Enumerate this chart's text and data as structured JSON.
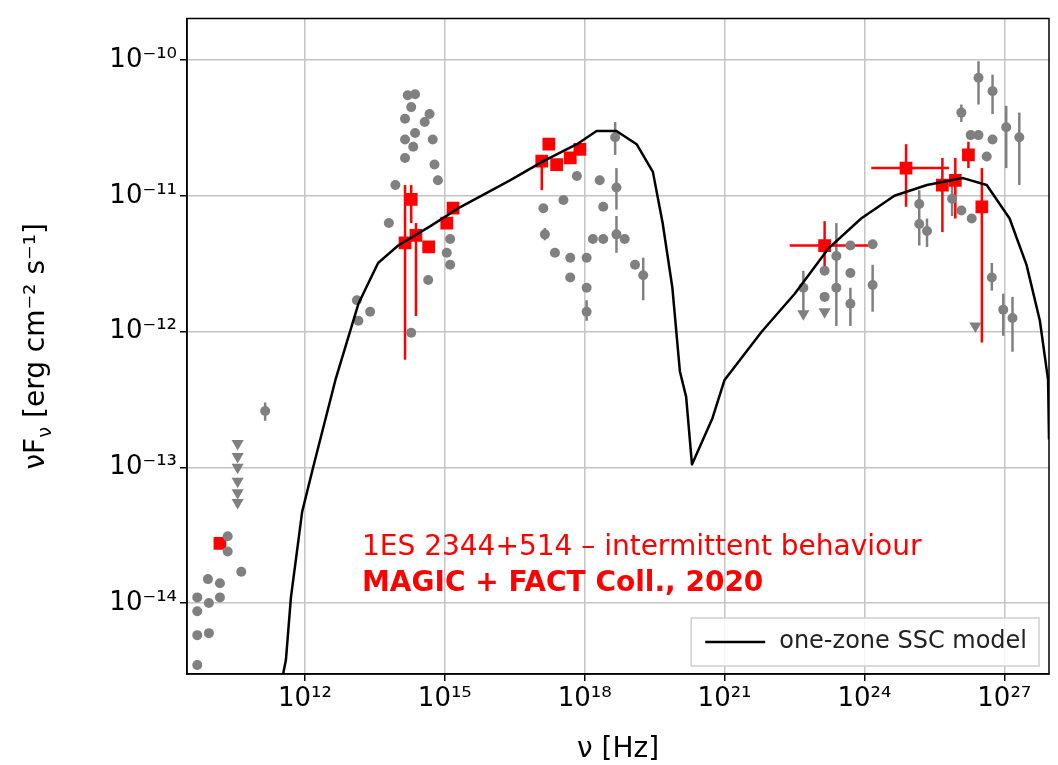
{
  "chart_data": {
    "type": "scatter",
    "xlabel": "ν [Hz]",
    "ylabel": "νF$_{ν}$ [erg cm⁻² s⁻¹]",
    "log": "xy",
    "xlim": [
      2950000000.0,
      9.1e+27
    ],
    "ylim": [
      3e-15,
      2.02e-10
    ],
    "xticks": [
      {
        "value": 1000000000000.0,
        "label": "10¹²"
      },
      {
        "value": 1000000000000000.0,
        "label": "10¹⁵"
      },
      {
        "value": 1e+18,
        "label": "10¹⁸"
      },
      {
        "value": 1e+21,
        "label": "10²¹"
      },
      {
        "value": 1e+24,
        "label": "10²⁴"
      },
      {
        "value": 1e+27,
        "label": "10²⁷"
      }
    ],
    "yticks": [
      {
        "value": 1e-14,
        "label": "10⁻¹⁴"
      },
      {
        "value": 1e-13,
        "label": "10⁻¹³"
      },
      {
        "value": 1e-12,
        "label": "10⁻¹²"
      },
      {
        "value": 1e-11,
        "label": "10⁻¹¹"
      },
      {
        "value": 1e-10,
        "label": "10⁻¹⁰"
      }
    ],
    "grid": true,
    "legend": "bottom right",
    "annotations": [
      "1ES 2344+514 – intermittent behaviour",
      "MAGIC + FACT Coll., 2020"
    ],
    "series": [
      {
        "name": "one-zone SSC model",
        "type": "line",
        "color": "#000000",
        "marker": "none",
        "x": [
          340000000000.0,
          390000000000.0,
          500000000000.0,
          870000000000.0,
          1500000000000.0,
          4500000000000.0,
          14000000000000.0,
          37000000000000.0,
          100000000000000.0,
          500000000000000.0,
          2200000000000000.0,
          2.5e+16,
          1.3e+17,
          6.8e+17,
          1.8e+18,
          4.8e+18,
          1.3e+19,
          2.9e+19,
          4.7e+19,
          7.6e+19,
          1.1e+20,
          1.5e+20,
          2e+20,
          5.5e+20,
          1e+21,
          6.3e+21,
          3.2e+22,
          1.7e+23,
          8.5e+23,
          4.4e+24,
          2.2e+25,
          1.3e+26,
          4.2e+26,
          1.3e+27,
          3e+27,
          5.8e+27,
          8.7e+27,
          9.1e+27
        ],
        "values": [
          3e-15,
          3.8e-15,
          1.1e-14,
          4.7e-14,
          1e-13,
          4.4e-13,
          1.6e-12,
          3.2e-12,
          4.3e-12,
          6e-12,
          8.3e-12,
          1.3e-11,
          1.8e-11,
          2.4e-11,
          3e-11,
          3e-11,
          2.4e-11,
          1.5e-11,
          6.3e-12,
          2.1e-12,
          5.1e-13,
          3.3e-13,
          1.05e-13,
          2.3e-13,
          4.4e-13,
          1e-12,
          1.9e-12,
          4.1e-12,
          6.8e-12,
          1e-11,
          1.2e-11,
          1.35e-11,
          1.2e-11,
          6.8e-12,
          3.1e-12,
          1.2e-12,
          4.4e-13,
          1.6e-13
        ]
      },
      {
        "color": "#808080",
        "marker": "circle",
        "x": [
          4900000000.0,
          4900000000.0,
          4900000000.0,
          4900000000.0,
          8300000000.0,
          8700000000.0,
          8700000000.0,
          15000000000.0,
          15000000000.0,
          22000000000.0,
          22000000000.0,
          43000000000.0,
          140000000000.0,
          13000000000000.0,
          25000000000000.0,
          14000000000000.0,
          63000000000000.0,
          87000000000000.0,
          140000000000000.0,
          140000000000000.0,
          140000000000000.0,
          160000000000000.0,
          230000000000000.0,
          190000000000000.0,
          230000000000000.0,
          210000000000000.0,
          370000000000000.0,
          470000000000000.0,
          550000000000000.0,
          600000000000000.0,
          710000000000000.0,
          190000000000000.0,
          440000000000000.0,
          1300000000000000.0,
          1300000000000000.0,
          1100000000000000.0,
          1.3e+17,
          1.4e+17,
          2.3e+17,
          3.5e+17,
          4.9e+17,
          4.9e+17,
          6.8e+17,
          1.1e+18,
          1.1e+18,
          1.1e+18,
          1.5e+18,
          2.5e+18,
          2.5e+18,
          2.1e+18,
          4.5e+18,
          4.8e+18,
          4.8e+18,
          7.2e+18,
          1.2e+19,
          1.8e+19,
          4.9e+22,
          1.4e+23,
          1.4e+23,
          2.5e+23,
          2.5e+23,
          5e+23,
          5e+23,
          5e+23,
          1.5e+24,
          1.5e+24,
          1.5e+25,
          1.5e+25,
          2.2e+25,
          7.6e+25,
          1.2e+26,
          2e+26,
          1.2e+26,
          1.9e+26,
          2.8e+26,
          2.8e+26,
          5.6e+26,
          4.2e+26,
          5.6e+26,
          1.1e+27,
          2.1e+27,
          5.4e+26,
          9.5e+26,
          1.5e+27
        ],
        "values": [
          1.1e-14,
          8.7e-15,
          5.8e-15,
          3.5e-15,
          1.5e-14,
          1e-14,
          6e-15,
          1.4e-14,
          1.1e-14,
          3.1e-14,
          2.4e-14,
          1.7e-14,
          2.6e-13,
          1.7e-12,
          1.4e-12,
          1.2e-12,
          6.3e-12,
          1.2e-11,
          1.9e-11,
          2.6e-11,
          3.7e-11,
          5.5e-11,
          5.6e-11,
          4.5e-11,
          2.9e-11,
          2.3e-11,
          3.5e-11,
          4e-11,
          2.6e-11,
          1.7e-11,
          1.3e-11,
          9.8e-13,
          2.4e-12,
          4.8e-12,
          3.1e-12,
          3.8e-12,
          8.1e-12,
          5.2e-12,
          3.8e-12,
          9.3e-12,
          2.5e-12,
          3.5e-12,
          1.4e-11,
          1.4e-12,
          2.1e-12,
          3.5e-12,
          4.8e-12,
          4.8e-12,
          8.3e-12,
          1.3e-11,
          2.7e-11,
          1.15e-11,
          5.2e-12,
          4.8e-12,
          3.1e-12,
          2.6e-12,
          2.1e-12,
          2.8e-12,
          1.8e-12,
          3.6e-12,
          2.1e-12,
          4.3e-12,
          2.7e-12,
          1.6e-12,
          4.4e-12,
          2.2e-12,
          8.7e-12,
          6.2e-12,
          5.5e-12,
          9.5e-12,
          7.8e-12,
          6.8e-12,
          4.1e-11,
          2.8e-11,
          2.8e-11,
          7.4e-11,
          5.9e-11,
          1.95e-11,
          2.6e-11,
          3.2e-11,
          2.7e-11,
          2.5e-12,
          1.45e-12,
          1.26e-12
        ],
        "errors": [
          null,
          null,
          null,
          null,
          null,
          null,
          null,
          null,
          null,
          null,
          null,
          null,
          [
            2.2e-13,
            3e-13
          ],
          null,
          null,
          null,
          null,
          null,
          null,
          null,
          null,
          null,
          null,
          null,
          null,
          null,
          null,
          null,
          null,
          null,
          null,
          null,
          null,
          null,
          null,
          null,
          null,
          [
            4.7e-12,
            5.8e-12
          ],
          null,
          null,
          null,
          null,
          null,
          [
            1.2e-12,
            1.7e-12
          ],
          null,
          null,
          null,
          null,
          null,
          null,
          [
            2e-11,
            3.5e-11
          ],
          [
            7.9e-12,
            1.6e-11
          ],
          [
            3.8e-12,
            7.1e-12
          ],
          null,
          null,
          [
            1.7e-12,
            3.5e-12
          ],
          [
            1.4e-12,
            2.8e-12
          ],
          null,
          null,
          null,
          [
            1.1e-12,
            6.3e-12
          ],
          null,
          null,
          [
            1.1e-12,
            2.1e-12
          ],
          null,
          [
            1.4e-12,
            3.1e-12
          ],
          [
            4.3e-12,
            1.1e-11
          ],
          null,
          [
            4.2e-12,
            6.8e-12
          ],
          [
            7.1e-12,
            1.3e-11
          ],
          null,
          null,
          [
            3.5e-11,
            4.7e-11
          ],
          null,
          null,
          [
            4.7e-11,
            9.8e-11
          ],
          [
            4e-11,
            7.8e-11
          ],
          null,
          null,
          [
            1.6e-11,
            4.6e-11
          ],
          [
            1.2e-11,
            4.1e-11
          ],
          [
            2e-12,
            3.2e-12
          ],
          [
            9.3e-13,
            1.9e-12
          ],
          [
            7.1e-13,
            1.8e-12
          ]
        ]
      },
      {
        "color": "#808080",
        "marker": "triangle",
        "x": [
          36000000000.0,
          36000000000.0,
          36000000000.0,
          36000000000.0,
          36000000000.0,
          36000000000.0,
          4.9e+22,
          1.4e+23,
          2.4e+26
        ],
        "values": [
          1.5e-13,
          1.2e-13,
          1e-13,
          7.9e-14,
          6.5e-14,
          5.5e-14,
          1.35e-12,
          1.4e-12,
          1.1e-12
        ]
      },
      {
        "color": "#ff0000",
        "marker": "square",
        "x": [
          15000000000.0,
          140000000000000.0,
          190000000000000.0,
          240000000000000.0,
          450000000000000.0,
          1100000000000000.0,
          1500000000000000.0,
          1.2e+17,
          1.7e+17,
          2.5e+17,
          4.9e+17,
          7.9e+17,
          1.4e+23,
          7.8e+24,
          4.7e+25,
          8.9e+25,
          1.7e+26,
          3.3e+26
        ],
        "values": [
          2.75e-14,
          4.5e-12,
          9.4e-12,
          5.1e-12,
          4.2e-12,
          6.3e-12,
          8.1e-12,
          1.8e-11,
          2.4e-11,
          1.7e-11,
          1.9e-11,
          2.2e-11,
          4.3e-12,
          1.6e-11,
          1.2e-11,
          1.3e-11,
          2e-11,
          8.3e-12
        ],
        "errors": [
          null,
          [
            6.2e-13,
            1.2e-11
          ],
          [
            6.3e-12,
            1.2e-11
          ],
          [
            1.3e-12,
            6.3e-12
          ],
          null,
          null,
          null,
          [
            1.1e-11,
            1.8e-11
          ],
          null,
          null,
          null,
          null,
          [
            2.7e-12,
            6.5e-12
          ],
          [
            8.3e-12,
            2.4e-11
          ],
          [
            5.4e-12,
            1.9e-11
          ],
          [
            6.8e-12,
            1.9e-11
          ],
          [
            1.6e-11,
            2.5e-11
          ],
          [
            8.3e-13,
            1.6e-11
          ]
        ],
        "xerrors": [
          null,
          null,
          null,
          null,
          null,
          null,
          null,
          null,
          null,
          null,
          null,
          null,
          [
            2.5e+22,
            1.3e+24
          ],
          [
            1.4e+24,
            6.5e+25
          ],
          null,
          null,
          null,
          null
        ]
      }
    ]
  }
}
